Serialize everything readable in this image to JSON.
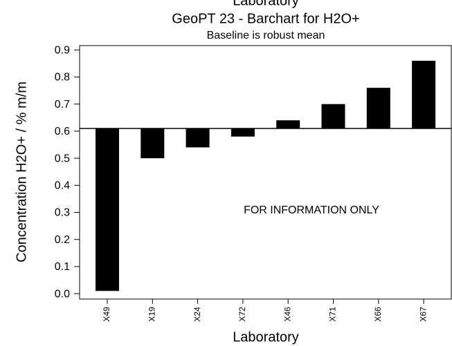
{
  "chart_data": {
    "type": "bar",
    "top_label": "Laboratory",
    "title": "GeoPT 23 - Barchart for H2O+",
    "subtitle": "Baseline is robust mean",
    "annotation": "FOR INFORMATION ONLY",
    "x_label": "Laboratory",
    "y_label": "Concentration H2O+ / % m/m",
    "categories": [
      "X49",
      "X19",
      "X24",
      "X72",
      "X46",
      "X71",
      "X66",
      "X67"
    ],
    "values": [
      0.01,
      0.5,
      0.54,
      0.58,
      0.64,
      0.7,
      0.76,
      0.86
    ],
    "baseline": 0.61,
    "color": "#000000",
    "ylim": [
      -0.02,
      0.916
    ],
    "yticks": [
      {
        "value": 0,
        "label": "0.0"
      },
      0.1,
      0.2,
      0.3,
      0.4,
      0.5,
      0.6,
      0.7,
      0.8,
      0.9
    ]
  }
}
